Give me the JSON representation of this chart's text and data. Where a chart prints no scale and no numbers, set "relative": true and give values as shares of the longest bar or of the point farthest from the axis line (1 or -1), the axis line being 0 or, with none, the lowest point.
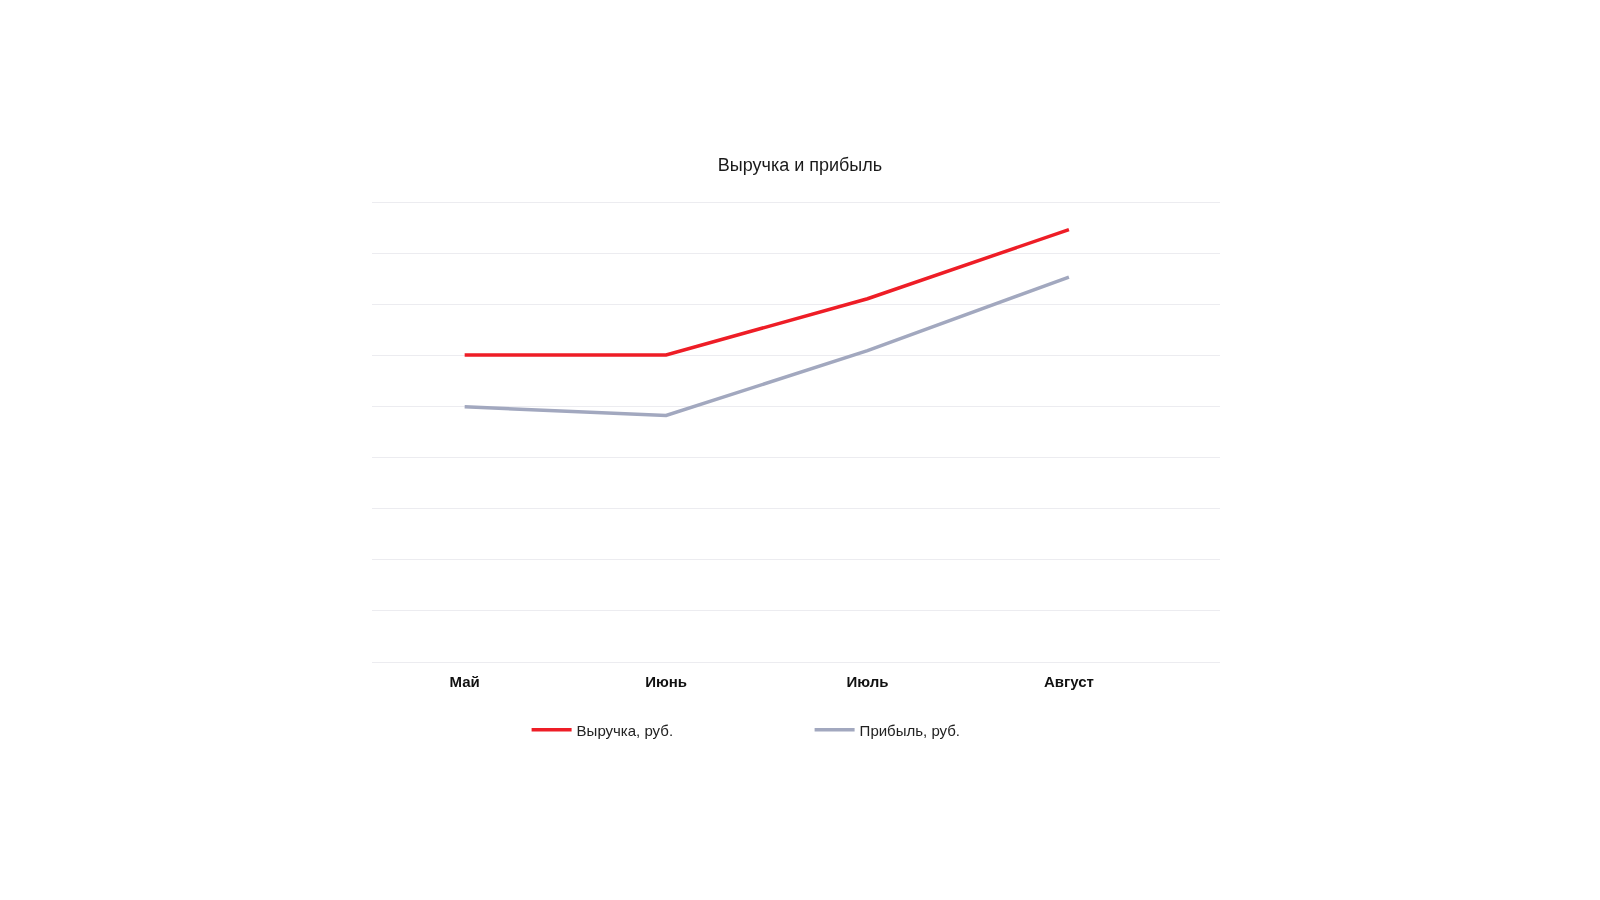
{
  "chart_data": {
    "type": "line",
    "title": "Выручка и прибыль",
    "categories": [
      "Май",
      "Июнь",
      "Июль",
      "Август"
    ],
    "series": [
      {
        "name": "Выручка, руб.",
        "color": "#ee1d26",
        "values": [
          0.71,
          0.71,
          0.84,
          1
        ]
      },
      {
        "name": "Прибыль, руб.",
        "color": "#a2a8bf",
        "values": [
          0.59,
          0.57,
          0.72,
          0.89
        ]
      }
    ],
    "relative": true,
    "grid": "y",
    "legend": "bottom",
    "tick_labels": "x"
  }
}
